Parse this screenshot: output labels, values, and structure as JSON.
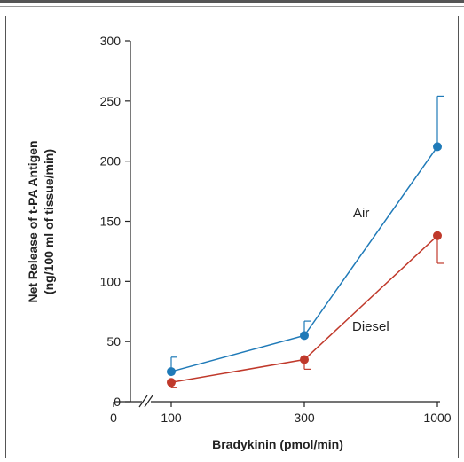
{
  "chart_data": {
    "type": "line",
    "title": "",
    "xlabel": "Bradykinin (pmol/min)",
    "ylabel_line1": "Net Release of t-PA Antigen",
    "ylabel_line2": "(ng/100 ml of tissue/min)",
    "x_ticks": [
      "0",
      "100",
      "300",
      "1000"
    ],
    "y_ticks": [
      "0",
      "50",
      "100",
      "150",
      "200",
      "250",
      "300"
    ],
    "ylim": [
      0,
      300
    ],
    "x_axis_break": true,
    "categories": [
      100,
      300,
      1000
    ],
    "series": [
      {
        "name": "Air",
        "color": "#1f7ab8",
        "values": [
          25,
          55,
          212
        ],
        "error_upper": [
          37,
          67,
          254
        ],
        "error_direction": "up"
      },
      {
        "name": "Diesel",
        "color": "#c0392b",
        "values": [
          16,
          35,
          138
        ],
        "error_lower": [
          12,
          27,
          115
        ],
        "error_direction": "down"
      }
    ],
    "grid": false
  }
}
